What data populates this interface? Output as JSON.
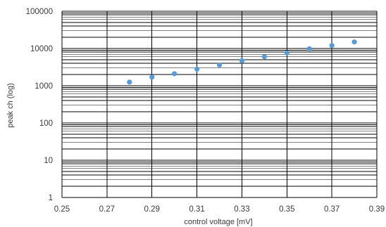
{
  "chart_data": {
    "type": "scatter",
    "title": "",
    "xlabel": "control voltage [mV]",
    "ylabel": "peak ch (log)",
    "xlim": [
      0.25,
      0.39
    ],
    "ylim": [
      1,
      100000
    ],
    "y_scale": "log",
    "grid": "on",
    "x_ticks": [
      "0.25",
      "0.27",
      "0.29",
      "0.31",
      "0.33",
      "0.35",
      "0.37",
      "0.39"
    ],
    "y_ticks": [
      "1",
      "10",
      "100",
      "1000",
      "10000",
      "100000"
    ],
    "x": [
      0.28,
      0.29,
      0.3,
      0.31,
      0.32,
      0.33,
      0.34,
      0.35,
      0.36,
      0.37,
      0.38
    ],
    "y": [
      1250,
      1700,
      2100,
      2800,
      3600,
      4700,
      6000,
      7600,
      9800,
      12000,
      15000
    ],
    "marker_color": "#5b9bd5",
    "grid_color": "#000000"
  }
}
